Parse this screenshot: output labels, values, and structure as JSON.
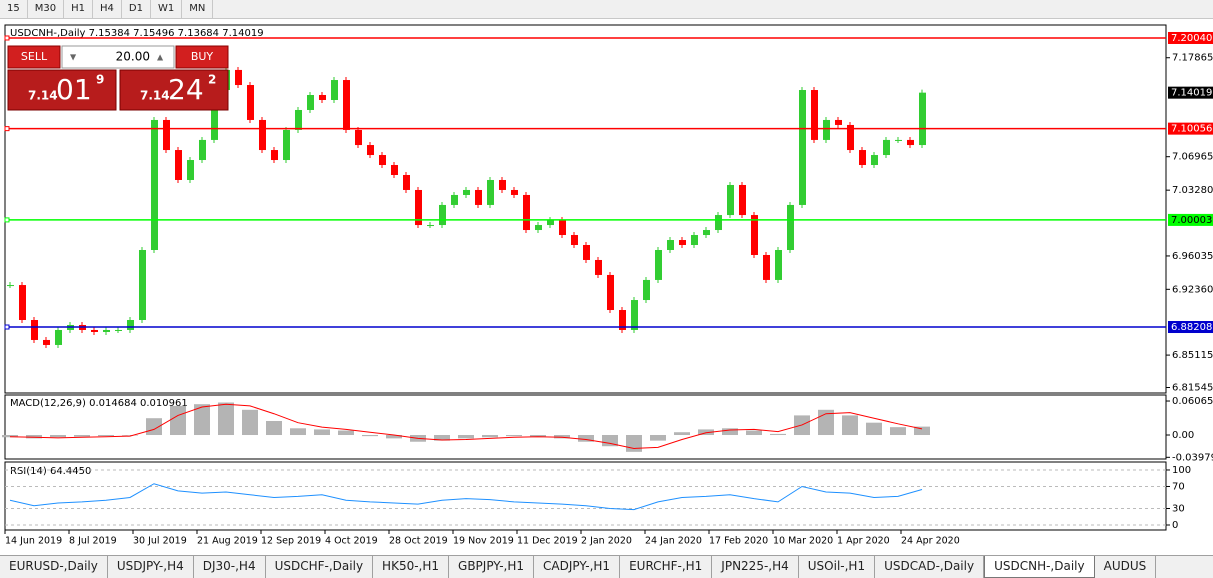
{
  "toolbar": [
    "15",
    "M30",
    "H1",
    "H4",
    "D1",
    "W1",
    "MN"
  ],
  "header": "USDCNH-,Daily  7.15384 7.15496 7.13684 7.14019",
  "trade": {
    "sell": "SELL",
    "buy": "BUY",
    "lot": "20.00",
    "bid": [
      "7.14",
      "01",
      "9"
    ],
    "ask": [
      "7.14",
      "24",
      "2"
    ]
  },
  "price": {
    "ylim": [
      6.8094,
      7.2147
    ],
    "yticks": [
      7.17865,
      7.06965,
      {
        "value": 7.0328,
        "label": "7.03280"
      },
      6.96035,
      {
        "value": 6.9236,
        "label": "6.92360"
      },
      6.85115,
      6.81545
    ],
    "levels": [
      {
        "value": 7.2004,
        "label": "7.20040",
        "color": "#ff0000",
        "text_color": "#ffffff"
      },
      {
        "value": 7.10056,
        "label": "7.10056",
        "color": "#ff0000",
        "text_color": "#ffffff"
      },
      {
        "value": 7.00003,
        "label": "7.00003",
        "color": "#00ff00",
        "text_color": "#000000"
      },
      {
        "value": 6.88208,
        "label": "6.88208",
        "color": "#0000cd",
        "text_color": "#ffffff"
      }
    ],
    "current": 7.14019,
    "up_color": "#32cd32",
    "down_color": "#ff0000",
    "closes": [
      6.9283,
      6.8898,
      6.8678,
      6.8623,
      6.8788,
      6.8843,
      6.8788,
      6.8766,
      6.8788,
      6.8788,
      6.8898,
      6.9669,
      7.1101,
      7.077,
      7.044,
      7.066,
      7.0881,
      7.1431,
      7.1652,
      7.1486,
      7.1101,
      7.077,
      7.066,
      7.0991,
      7.1211,
      7.1376,
      7.1321,
      7.1541,
      7.0991,
      7.0825,
      7.0715,
      7.0605,
      7.0495,
      7.033,
      6.9944,
      6.9944,
      7.0165,
      7.0275,
      7.033,
      7.0165,
      7.044,
      7.033,
      7.0275,
      6.9889,
      6.9944,
      7.0,
      6.9834,
      6.9724,
      6.9559,
      6.9394,
      6.9008,
      6.8788,
      6.9118,
      6.9339,
      6.9669,
      6.9779,
      6.9724,
      6.9834,
      6.9889,
      7.0054,
      7.0385,
      7.0054,
      6.9614,
      6.9339,
      6.9669,
      7.0165,
      7.1431,
      7.0881,
      7.1101,
      7.1046,
      7.077,
      7.0605,
      7.0715,
      7.0881,
      7.0881,
      7.0825,
      7.1402
    ]
  },
  "dates": [
    "14 Jun 2019",
    "8 Jul 2019",
    "30 Jul 2019",
    "21 Aug 2019",
    "12 Sep 2019",
    "4 Oct 2019",
    "28 Oct 2019",
    "19 Nov 2019",
    "11 Dec 2019",
    "2 Jan 2020",
    "24 Jan 2020",
    "17 Feb 2020",
    "10 Mar 2020",
    "1 Apr 2020",
    "24 Apr 2020"
  ],
  "macd": {
    "label": "MACD(12,26,9) 0.014684 0.010961",
    "ylim": [
      -0.0428,
      0.0714
    ],
    "yticks": [
      0.060657,
      {
        "value": 0,
        "label": "0.00"
      },
      -0.039792
    ],
    "histogram_color": "#b4b4b4",
    "signal_color": "#ff0000",
    "histogram": [
      -0.004,
      -0.006,
      -0.004,
      -0.003,
      -0.002,
      0.0,
      0.03,
      0.052,
      0.055,
      0.058,
      0.045,
      0.025,
      0.012,
      0.01,
      0.008,
      -0.002,
      -0.006,
      -0.012,
      -0.01,
      -0.006,
      -0.004,
      -0.002,
      -0.003,
      -0.006,
      -0.012,
      -0.02,
      -0.03,
      -0.01,
      0.005,
      0.01,
      0.012,
      0.008,
      0.002,
      0.035,
      0.045,
      0.035,
      0.022,
      0.014,
      0.015
    ],
    "signal": [
      -0.003,
      -0.004,
      -0.005,
      -0.004,
      -0.003,
      -0.002,
      0.01,
      0.035,
      0.05,
      0.055,
      0.052,
      0.038,
      0.022,
      0.014,
      0.01,
      0.005,
      0.0,
      -0.006,
      -0.009,
      -0.008,
      -0.006,
      -0.004,
      -0.003,
      -0.004,
      -0.008,
      -0.015,
      -0.024,
      -0.022,
      -0.008,
      0.004,
      0.009,
      0.01,
      0.006,
      0.018,
      0.038,
      0.04,
      0.03,
      0.02,
      0.011
    ]
  },
  "rsi": {
    "label": "RSI(14) 64.4450",
    "ylim": [
      -9.1,
      114.5
    ],
    "yticks": [
      100,
      70,
      30,
      0
    ],
    "color": "#1e90ff",
    "values": [
      45,
      35,
      40,
      42,
      45,
      50,
      75,
      62,
      58,
      60,
      55,
      50,
      52,
      55,
      45,
      42,
      40,
      38,
      45,
      48,
      46,
      42,
      40,
      38,
      35,
      30,
      28,
      42,
      50,
      52,
      55,
      48,
      42,
      70,
      60,
      58,
      50,
      52,
      64.445
    ]
  },
  "tabs": [
    "EURUSD-,Daily",
    "USDJPY-,H4",
    "DJ30-,H4",
    "USDCHF-,Daily",
    "HK50-,H1",
    "GBPJPY-,H1",
    "CADJPY-,H1",
    "EURCHF-,H1",
    "JPN225-,H4",
    "USOil-,H1",
    "USDCAD-,Daily",
    "USDCNH-,Daily",
    "AUDUS"
  ],
  "active_tab": 11
}
